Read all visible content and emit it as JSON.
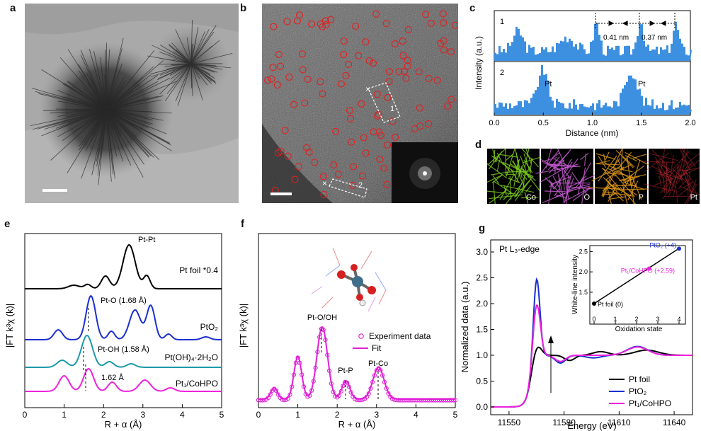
{
  "panels": {
    "a": {
      "label": "a"
    },
    "b": {
      "label": "b",
      "marker1": "1",
      "marker2": "2"
    },
    "c": {
      "label": "c",
      "line1_tag": "1",
      "line2_tag": "2",
      "ylabel": "Intensity (a.u.)",
      "xlabel": "Distance (nm)",
      "xticks": [
        "0.0",
        "0.5",
        "1.0",
        "1.5",
        "2.0"
      ],
      "spacing1": "0.41 nm",
      "spacing2": "0.37 nm",
      "peak_left": "Pt",
      "peak_right": "Pt"
    },
    "d": {
      "label": "d",
      "maps": [
        "Co",
        "O",
        "P",
        "Pt"
      ],
      "colors": [
        "#7fce1f",
        "#c85cd4",
        "#e39a1a",
        "#c02a33"
      ]
    },
    "e": {
      "label": "e",
      "xlabel": "R + α (Å)",
      "ylabel": "|FT k³χ (k)|",
      "xticks": [
        "0",
        "1",
        "2",
        "3",
        "4",
        "5"
      ],
      "annotations": {
        "ptpt": "Pt-Pt",
        "pto": "Pt-O (1.68 Å)",
        "ptoh": "Pt-OH (1.58 Å)",
        "d162": "1.62 Å"
      },
      "series_labels": [
        "Pt foil *0.4",
        "PtO₂",
        "Pt(OH)₄·2H₂O",
        "Pt₁/CoHPO"
      ],
      "colors": [
        "#000000",
        "#1a2fcf",
        "#1b9aa8",
        "#ee22dd"
      ]
    },
    "f": {
      "label": "f",
      "xlabel": "R + α (Å)",
      "ylabel": "|FT k³χ (k)|",
      "xticks": [
        "0",
        "1",
        "2",
        "3",
        "4",
        "5"
      ],
      "annotations": {
        "ptooh": "Pt-O/OH",
        "ptp": "Pt-P",
        "ptco": "Pt-Co"
      },
      "legend": [
        "Experiment data",
        "Fit"
      ],
      "color": "#e020d8"
    },
    "g": {
      "label": "g",
      "title": "Pt L₃-edge",
      "xlabel": "Energy (eV)",
      "ylabel": "Normalized data (a.u.)",
      "xticks": [
        "11550",
        "11580",
        "11610",
        "11640"
      ],
      "yticks": [
        "0.0",
        "0.5",
        "1.0",
        "1.5",
        "2.0",
        "2.5",
        "3.0"
      ],
      "legend": [
        "Pt foil",
        "PtO₂",
        "Pt₁/CoHPO"
      ],
      "colors": [
        "#000000",
        "#1a2fcf",
        "#ee22dd"
      ],
      "inset": {
        "xlabel": "Oxidation state",
        "ylabel": "White-line intensity",
        "xticks": [
          "0",
          "1",
          "2",
          "3",
          "4"
        ],
        "yticks": [
          "1.5",
          "2.0",
          "2.5"
        ],
        "points": [
          {
            "label": "Pt foil (0)",
            "x": 0,
            "y": 1.22
          },
          {
            "label": "Pt₁/CoHPO (+2.59)",
            "x": 2.59,
            "y": 2.08
          },
          {
            "label": "PtO₂ (+4)",
            "x": 4,
            "y": 2.57
          }
        ]
      }
    }
  }
}
